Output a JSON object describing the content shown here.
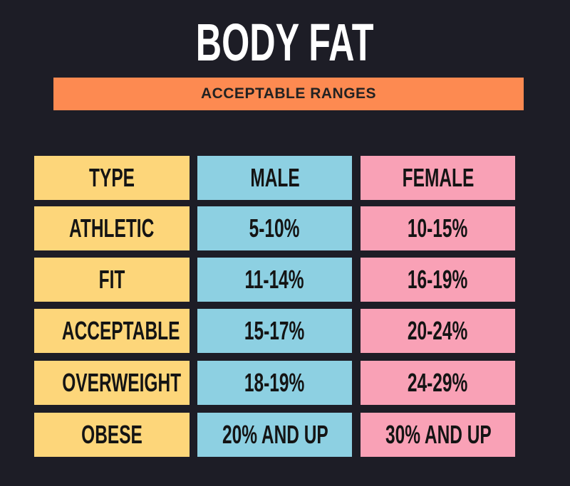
{
  "header": {
    "title": "BODY FAT",
    "subtitle": "ACCEPTABLE RANGES"
  },
  "table": {
    "columns": [
      "TYPE",
      "MALE",
      "FEMALE"
    ],
    "rows": [
      [
        "ATHLETIC",
        "5-10%",
        "10-15%"
      ],
      [
        "FIT",
        "11-14%",
        "16-19%"
      ],
      [
        "ACCEPTABLE",
        "15-17%",
        "20-24%"
      ],
      [
        "OVERWEIGHT",
        "18-19%",
        "24-29%"
      ],
      [
        "OBESE",
        "20% AND UP",
        "30% AND UP"
      ]
    ]
  }
}
